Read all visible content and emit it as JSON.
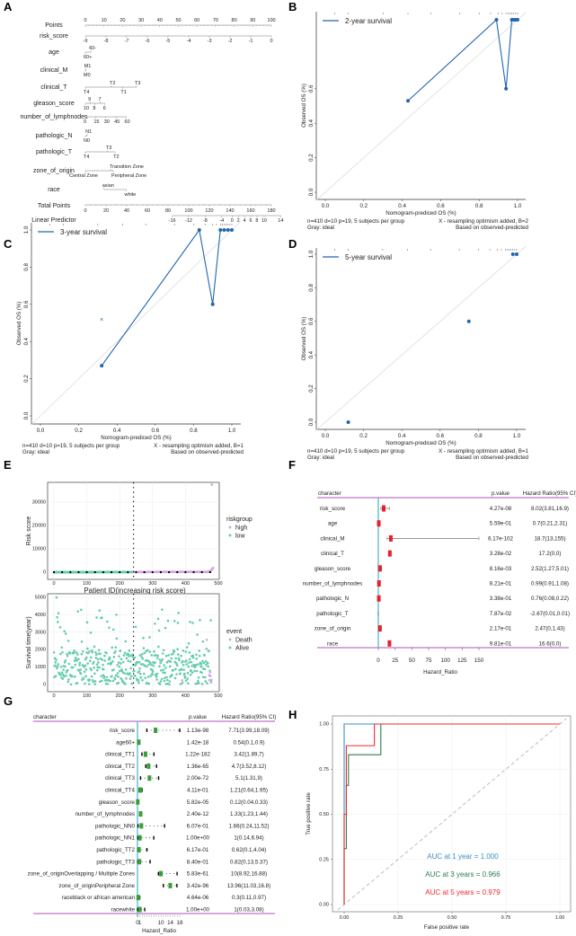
{
  "panels": {
    "A": "A",
    "B": "B",
    "C": "C",
    "D": "D",
    "E": "E",
    "F": "F",
    "G": "G",
    "H": "H"
  },
  "chart_data": [
    {
      "panel": "A",
      "type": "nomogram",
      "points_axis": {
        "label": "Points",
        "ticks": [
          0,
          10,
          20,
          30,
          40,
          50,
          60,
          70,
          80,
          90,
          100
        ]
      },
      "variables": [
        {
          "label": "risk_score",
          "ticks": [
            {
              "t": "-9",
              "p": 0,
              "pos": "bottom"
            },
            {
              "t": "-8",
              "p": 11.1,
              "pos": "bottom"
            },
            {
              "t": "-7",
              "p": 22.2,
              "pos": "bottom"
            },
            {
              "t": "-6",
              "p": 33.3,
              "pos": "bottom"
            },
            {
              "t": "-5",
              "p": 44.4,
              "pos": "bottom"
            },
            {
              "t": "-4",
              "p": 55.6,
              "pos": "bottom"
            },
            {
              "t": "-3",
              "p": 66.7,
              "pos": "bottom"
            },
            {
              "t": "-2",
              "p": 77.8,
              "pos": "bottom"
            },
            {
              "t": "-1",
              "p": 88.9,
              "pos": "bottom"
            },
            {
              "t": "0",
              "p": 100,
              "pos": "bottom"
            }
          ]
        },
        {
          "label": "age",
          "ticks": [
            {
              "t": "60-",
              "p": 3,
              "pos": "top"
            },
            {
              "t": "60+",
              "p": 0,
              "pos": "bottom"
            }
          ]
        },
        {
          "label": "clinical_M",
          "ticks": [
            {
              "t": "M1",
              "p": 0.3,
              "pos": "top"
            },
            {
              "t": "M0",
              "p": 0,
              "pos": "bottom"
            }
          ]
        },
        {
          "label": "clinical_T",
          "ticks": [
            {
              "t": "T4",
              "p": 0,
              "pos": "bottom"
            },
            {
              "t": "T2",
              "p": 14,
              "pos": "top"
            },
            {
              "t": "T1",
              "p": 20,
              "pos": "bottom"
            },
            {
              "t": "T3",
              "p": 27.5,
              "pos": "top"
            }
          ]
        },
        {
          "label": "gleason_score",
          "ticks": [
            {
              "t": "10",
              "p": 0,
              "pos": "bottom"
            },
            {
              "t": "9",
              "p": 2.5,
              "pos": "top"
            },
            {
              "t": "8",
              "p": 5,
              "pos": "bottom"
            },
            {
              "t": "7",
              "p": 8,
              "pos": "top"
            },
            {
              "t": "6",
              "p": 10.5,
              "pos": "bottom"
            }
          ]
        },
        {
          "label": "number_of_lymphnodes",
          "ticks": [
            {
              "t": "0",
              "p": 0,
              "pos": "bottom"
            },
            {
              "t": "15",
              "p": 5.5,
              "pos": "bottom"
            },
            {
              "t": "30",
              "p": 11,
              "pos": "bottom"
            },
            {
              "t": "45",
              "p": 16.5,
              "pos": "bottom"
            },
            {
              "t": "60",
              "p": 22,
              "pos": "bottom"
            }
          ]
        },
        {
          "label": "pathologic_N",
          "ticks": [
            {
              "t": "N1",
              "p": 1,
              "pos": "top"
            },
            {
              "t": "N0",
              "p": 0,
              "pos": "bottom"
            }
          ]
        },
        {
          "label": "pathologic_T",
          "ticks": [
            {
              "t": "T4",
              "p": 0,
              "pos": "bottom"
            },
            {
              "t": "T3",
              "p": 12,
              "pos": "top"
            },
            {
              "t": "T2",
              "p": 16,
              "pos": "bottom"
            }
          ]
        },
        {
          "label": "zone_of_origin",
          "ticks": [
            {
              "t": "Central Zone",
              "p": 0,
              "pos": "bottom"
            },
            {
              "t": "Transition Zone",
              "p": 14,
              "pos": "top"
            },
            {
              "t": "Peripheral Zone",
              "p": 15,
              "pos": "bottom"
            }
          ]
        },
        {
          "label": "race",
          "ticks": [
            {
              "t": "asian",
              "p": 10,
              "pos": "top"
            },
            {
              "t": "white",
              "p": 22,
              "pos": "bottom"
            }
          ]
        }
      ],
      "total_points": {
        "label": "Total Points",
        "ticks": [
          0,
          20,
          40,
          60,
          80,
          100,
          120,
          140,
          160,
          180
        ]
      },
      "linear_predictor": {
        "label": "Linear Predictor",
        "ticks": [
          {
            "t": "-16",
            "tp": 84
          },
          {
            "t": "-12",
            "tp": 100
          },
          {
            "t": "-8",
            "tp": 116
          },
          {
            "t": "-4",
            "tp": 132
          },
          {
            "t": "0",
            "tp": 142
          },
          {
            "t": "2",
            "tp": 148
          },
          {
            "t": "4",
            "tp": 154
          },
          {
            "t": "6",
            "tp": 160
          },
          {
            "t": "8",
            "tp": 166
          },
          {
            "t": "10",
            "tp": 173
          },
          {
            "t": "14",
            "tp": 189
          }
        ]
      }
    },
    {
      "panel": "B",
      "type": "line",
      "title": "2-year survival",
      "xlabel": "Nomogram-prediced OS (%)",
      "ylabel": "Observed OS (%)",
      "xticks": [
        "0.0",
        "0.2",
        "0.4",
        "0.6",
        "0.8",
        "1.0"
      ],
      "yticks": [
        "0.0",
        "0.2",
        "0.4",
        "0.6"
      ],
      "xlim": [
        0,
        1
      ],
      "ylim": [
        0,
        1
      ],
      "points": [
        [
          0.43,
          0.53
        ],
        [
          0.89,
          1.0
        ],
        [
          0.94,
          0.6
        ],
        [
          0.97,
          1.0
        ],
        [
          0.98,
          1.0
        ],
        [
          0.99,
          1.0
        ],
        [
          1.0,
          1.0
        ]
      ],
      "connected": true,
      "x_marks": [],
      "footer_left": [
        "n=410 d=10 p=19, 5 subjects per group",
        "Gray: ideal"
      ],
      "footer_right": [
        "X - resampling optimism added, B=2",
        "Based on observed-predicted"
      ],
      "color": "#2166ac"
    },
    {
      "panel": "C",
      "type": "line",
      "title": "3-year survival",
      "xlabel": "Nomogram-prediced OS (%)",
      "ylabel": "Observed OS (%)",
      "xticks": [
        "0.0",
        "0.2",
        "0.4",
        "0.6",
        "0.8",
        "1.0"
      ],
      "yticks": [
        "0.0",
        "0.2",
        "0.4",
        "0.6",
        "0.8",
        "1.0"
      ],
      "xlim": [
        0,
        1
      ],
      "ylim": [
        0,
        1
      ],
      "points": [
        [
          0.32,
          0.27
        ],
        [
          0.83,
          1.0
        ],
        [
          0.9,
          0.6
        ],
        [
          0.94,
          1.0
        ],
        [
          0.96,
          1.0
        ],
        [
          0.98,
          1.0
        ],
        [
          1.0,
          1.0
        ]
      ],
      "connected": true,
      "x_marks": [
        [
          0.32,
          0.52
        ]
      ],
      "footer_left": [
        "n=410 d=10 p=19, 5 subjects per group",
        "Gray: ideal"
      ],
      "footer_right": [
        "X - resampling optimism added, B=1",
        "Based on observed-predicted"
      ],
      "color": "#2166ac"
    },
    {
      "panel": "D",
      "type": "scatter",
      "title": "5-year survival",
      "xlabel": "Nomogram-prediced OS (%)",
      "ylabel": "Observed OS (%)",
      "xticks": [
        "0.0",
        "0.2",
        "0.4",
        "0.6",
        "0.8",
        "1.0"
      ],
      "yticks": [
        "0.0",
        "0.2",
        "0.4",
        "0.6",
        "0.8",
        "1.0"
      ],
      "xlim": [
        0,
        1
      ],
      "ylim": [
        0,
        1
      ],
      "points": [
        [
          0.12,
          0.0
        ],
        [
          0.75,
          0.6
        ],
        [
          0.98,
          1.0
        ],
        [
          1.0,
          1.0
        ]
      ],
      "connected": false,
      "x_marks": [],
      "footer_left": [
        "n=410 d=10 p=19, 5 subjects per group",
        "Gray: ideal"
      ],
      "footer_right": [
        "X - resampling optimism added, B=1",
        "Based on observed-predicted"
      ],
      "color": "#2166ac"
    },
    {
      "panel": "E-top",
      "type": "scatter",
      "xlabel": "Patient ID(increasing risk score)",
      "ylabel": "Risk score",
      "xticks": [
        "0",
        "100",
        "200",
        "300",
        "400",
        "500"
      ],
      "yticks": [
        "0",
        "10000",
        "20000",
        "30000"
      ],
      "xlim": [
        0,
        500
      ],
      "ylim": [
        0,
        38000
      ],
      "n_patients": 485,
      "cutoff": 242,
      "legend": {
        "title": "riskgroup",
        "items": [
          {
            "label": "high",
            "color": "#d4a6e0"
          },
          {
            "label": "low",
            "color": "#66cdaa"
          }
        ]
      },
      "max_point": [
        480,
        37500
      ]
    },
    {
      "panel": "E-bottom",
      "type": "scatter",
      "xlabel": "Patient ID(increasing risk score)",
      "ylabel": "Survival time(year)",
      "xticks": [
        "0",
        "100",
        "200",
        "300",
        "400",
        "500"
      ],
      "yticks": [
        "0",
        "1000",
        "2000",
        "3000",
        "4000",
        "5000"
      ],
      "xlim": [
        0,
        500
      ],
      "ylim": [
        0,
        5200
      ],
      "cutoff": 242,
      "legend": {
        "title": "event",
        "items": [
          {
            "label": "Death",
            "color": "#d4a6e0"
          },
          {
            "label": "Alive",
            "color": "#66cdaa"
          }
        ]
      }
    },
    {
      "panel": "F",
      "type": "forest",
      "header": {
        "character": "character",
        "pvalue": "p.value",
        "hr": "Hazard Ratio(95% CI)"
      },
      "xlabel": "Hazard_Ratio",
      "xticks": [
        0,
        25,
        50,
        75,
        100,
        125,
        150
      ],
      "xlim": [
        0,
        150
      ],
      "rows": [
        {
          "name": "risk_score",
          "p": "4.27e-08",
          "hr_text": "8.02(3.81,16.9)",
          "hr": 8.02,
          "lo": 3.81,
          "hi": 16.9
        },
        {
          "name": "age",
          "p": "5.59e-01",
          "hr_text": "0.7(0.21,2.31)",
          "hr": 0.7,
          "lo": 0.21,
          "hi": 2.31
        },
        {
          "name": "clinical_M",
          "p": "6.17e-102",
          "hr_text": "18.7(13,155)",
          "hr": 18.7,
          "lo": 13,
          "hi": 155
        },
        {
          "name": "clinical_T",
          "p": "3.28e-02",
          "hr_text": "17.2(0,0)",
          "hr": 17.2,
          "lo": 0,
          "hi": 0
        },
        {
          "name": "gleason_score",
          "p": "8.16e-03",
          "hr_text": "2.52(1.27,5.01)",
          "hr": 2.52,
          "lo": 1.27,
          "hi": 5.01
        },
        {
          "name": "number_of_lymphnodes",
          "p": "8.21e-01",
          "hr_text": "0.99(0.91,1.08)",
          "hr": 0.99,
          "lo": 0.91,
          "hi": 1.08
        },
        {
          "name": "pathologic_N",
          "p": "3.38e-01",
          "hr_text": "0.76(0.08,0.22)",
          "hr": 0.76,
          "lo": 0.08,
          "hi": 0.22
        },
        {
          "name": "pathologic_T",
          "p": "7.87e-02",
          "hr_text": "-2.67(0.01,0.01)",
          "hr": -2.67,
          "lo": 0.01,
          "hi": 0.01
        },
        {
          "name": "zone_of_origin",
          "p": "2.17e-01",
          "hr_text": "2.47(0,1.43)",
          "hr": 2.47,
          "lo": 0,
          "hi": 1.43
        },
        {
          "name": "race",
          "p": "9.81e-01",
          "hr_text": "16.6(0,0)",
          "hr": 16.6,
          "lo": 0,
          "hi": 0
        }
      ],
      "box_color": "#e8202a",
      "ref_color": "#5bc0cf",
      "rule_color": "#b04fb8"
    },
    {
      "panel": "G",
      "type": "forest",
      "header": {
        "character": "character",
        "pvalue": "p.value",
        "hr": "Hazard Ratio(95% CI)"
      },
      "xlabel": "Hazard_Ratio",
      "xticks": [
        0,
        1,
        10,
        14,
        18
      ],
      "xlim": [
        0,
        18
      ],
      "rows": [
        {
          "name": "risk_score",
          "p": "1.13e-98",
          "hr_text": "7.71(3.99,18.09)",
          "hr": 7.71,
          "lo": 3.99,
          "hi": 18.09
        },
        {
          "name": "age60+",
          "p": "1.42e-18",
          "hr_text": "0.54(0.1,0.9)",
          "hr": 0.54,
          "lo": 0.1,
          "hi": 0.9
        },
        {
          "name": "clinical_TT1",
          "p": "1.22e-182",
          "hr_text": "3.42(1.89,7)",
          "hr": 3.42,
          "lo": 1.89,
          "hi": 7
        },
        {
          "name": "clinical_TT2",
          "p": "1.36e-65",
          "hr_text": "4.7(3.52,8.12)",
          "hr": 4.7,
          "lo": 3.52,
          "hi": 8.12
        },
        {
          "name": "clinical_TT3",
          "p": "2.00e-72",
          "hr_text": "5.1(1.31,9)",
          "hr": 5.1,
          "lo": 1.31,
          "hi": 9
        },
        {
          "name": "clinical_TT4",
          "p": "4.11e-01",
          "hr_text": "1.21(0.64,1.95)",
          "hr": 1.21,
          "lo": 0.64,
          "hi": 1.95
        },
        {
          "name": "gleason_score",
          "p": "5.82e-05",
          "hr_text": "0.12(0.04,0.33)",
          "hr": 0.12,
          "lo": 0.04,
          "hi": 0.33
        },
        {
          "name": "number_of_lymphnodes",
          "p": "2.40e-12",
          "hr_text": "1.33(1.23,1.44)",
          "hr": 1.33,
          "lo": 1.23,
          "hi": 1.44
        },
        {
          "name": "pathologic_NN0",
          "p": "6.07e-01",
          "hr_text": "1.66(0.24,11.52)",
          "hr": 1.66,
          "lo": 0.24,
          "hi": 11.52
        },
        {
          "name": "pathologic_NN1",
          "p": "1.00e+00",
          "hr_text": "1(0.14,6.94)",
          "hr": 1,
          "lo": 0.14,
          "hi": 6.94
        },
        {
          "name": "pathologic_TT2",
          "p": "6.17e-01",
          "hr_text": "0.62(0.1,4.04)",
          "hr": 0.62,
          "lo": 0.1,
          "hi": 4.04
        },
        {
          "name": "pathologic_TT3",
          "p": "8.40e-01",
          "hr_text": "0.82(0.13,5.37)",
          "hr": 0.82,
          "lo": 0.13,
          "hi": 5.37
        },
        {
          "name": "zone_of_originOverlapping / Multiple Zones",
          "p": "5.83e-61",
          "hr_text": "10(8.92,16.88)",
          "hr": 10,
          "lo": 8.92,
          "hi": 16.88
        },
        {
          "name": "zone_of_originPeripheral Zone",
          "p": "3.42e-96",
          "hr_text": "13.96(11.03,16.8)",
          "hr": 13.96,
          "lo": 11.03,
          "hi": 16.8
        },
        {
          "name": "raceblack or african american",
          "p": "4.64e-06",
          "hr_text": "0.3(0.11,0.97)",
          "hr": 0.3,
          "lo": 0.11,
          "hi": 0.97
        },
        {
          "name": "racewhite",
          "p": "1.00e+00",
          "hr_text": "1(0.03,3.08)",
          "hr": 1,
          "lo": 0.03,
          "hi": 3.08
        }
      ],
      "box_color": "#3a9d3a",
      "ref_color": "#5bc0cf",
      "rule_color": "#b04fb8"
    },
    {
      "panel": "H",
      "type": "line",
      "xlabel": "False positive rate",
      "ylabel": "True positive rate",
      "xticks": [
        "0.00",
        "0.25",
        "0.50",
        "0.75",
        "1.00"
      ],
      "yticks": [
        "0.00",
        "0.25",
        "0.50",
        "0.75",
        "1.00"
      ],
      "xlim": [
        0,
        1
      ],
      "ylim": [
        0,
        1
      ],
      "series": [
        {
          "name": "AUC at 1 year = 1.000",
          "color": "#3a8fd0",
          "points": [
            [
              0,
              0
            ],
            [
              0,
              0.5
            ],
            [
              0,
              1
            ],
            [
              1,
              1
            ]
          ]
        },
        {
          "name": "AUC at 3 years = 0.966",
          "color": "#2e7d4f",
          "points": [
            [
              0,
              0
            ],
            [
              0,
              0.31
            ],
            [
              0.01,
              0.31
            ],
            [
              0.01,
              0.66
            ],
            [
              0.02,
              0.66
            ],
            [
              0.02,
              0.83
            ],
            [
              0.17,
              0.83
            ],
            [
              0.17,
              1
            ],
            [
              1,
              1
            ]
          ]
        },
        {
          "name": "AUC at 5 years = 0.979",
          "color": "#f0292e",
          "points": [
            [
              0,
              0
            ],
            [
              0,
              0.5
            ],
            [
              0.01,
              0.5
            ],
            [
              0.01,
              0.88
            ],
            [
              0.14,
              0.88
            ],
            [
              0.14,
              1
            ],
            [
              1,
              1
            ]
          ]
        }
      ]
    }
  ]
}
